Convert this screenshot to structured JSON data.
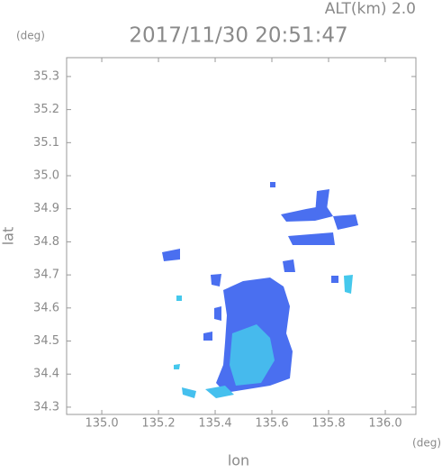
{
  "chart_data": {
    "type": "map",
    "title": "2017/11/30 20:51:47",
    "subtitle": "ALT(km) 2.0",
    "y_unit": "(deg)",
    "x_unit": "(deg)",
    "x_label": "lon",
    "y_label": "lat",
    "xlim": [
      134.876,
      136.108
    ],
    "ylim": [
      34.278,
      35.357
    ],
    "xticks": [
      {
        "value": 135,
        "label": "135.0"
      },
      135.2,
      135.4,
      135.6,
      135.8,
      {
        "value": 136,
        "label": "136.0"
      }
    ],
    "yticks": [
      34.3,
      34.4,
      34.5,
      34.6,
      34.7,
      34.8,
      34.9,
      {
        "value": 35,
        "label": "35.0"
      },
      35.1,
      35.2,
      35.3
    ]
  }
}
